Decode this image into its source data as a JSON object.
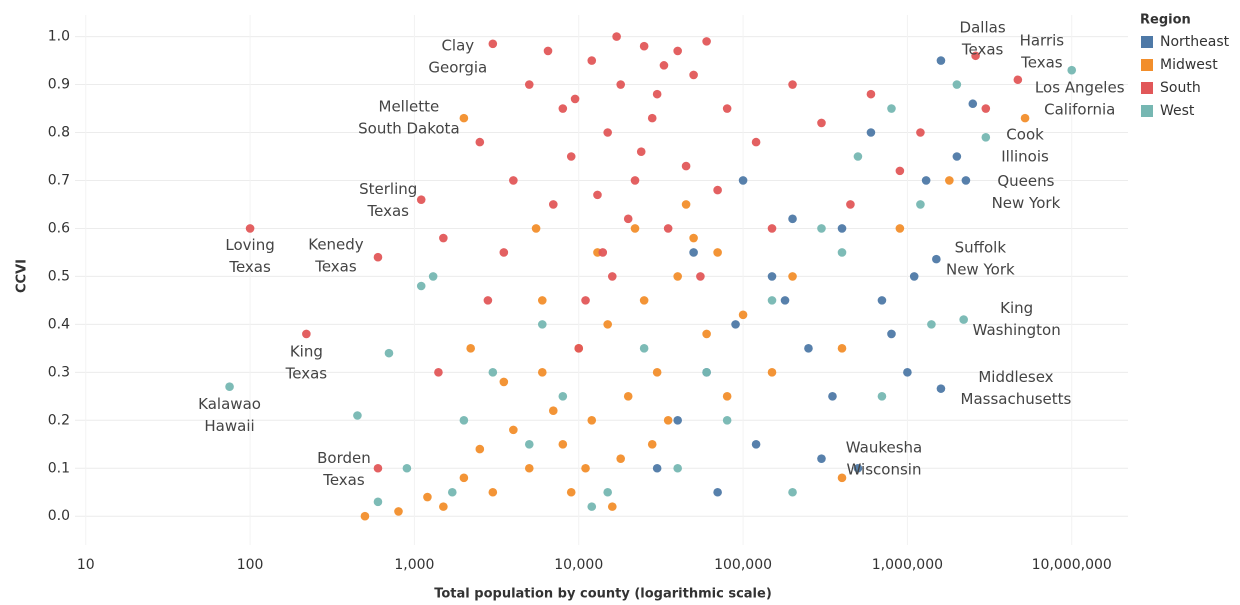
{
  "chart_data": {
    "type": "scatter",
    "x_label": "Total population by county (logarithmic scale)",
    "y_label": "CCVI",
    "x_log": true,
    "grid": true,
    "legend_title": "Region",
    "legend_position": "top-right",
    "xlim": [
      8.6,
      22000000
    ],
    "ylim": [
      -0.06,
      1.045
    ],
    "xticks": [
      10,
      100,
      {
        "value": 1000,
        "label": "1,000"
      },
      {
        "value": 10000,
        "label": "10,000"
      },
      {
        "value": 100000,
        "label": "100,000"
      },
      {
        "value": 1000000,
        "label": "1,000,000"
      },
      {
        "value": 10000000,
        "label": "10,000,000"
      }
    ],
    "yticks": [
      {
        "value": 0,
        "label": "0.0"
      },
      0.1,
      0.2,
      0.3,
      0.4,
      0.5,
      0.6,
      0.7,
      0.8,
      0.9,
      {
        "value": 1,
        "label": "1.0"
      }
    ],
    "series": [
      {
        "name": "Northeast",
        "color": "#4e79a7",
        "x": [
          40000,
          60000,
          90000,
          150000,
          250000,
          400000,
          700000,
          1000000,
          1300000,
          2000000,
          30000,
          50000,
          120000,
          200000,
          350000,
          600000,
          800000,
          500000,
          100000,
          70000,
          180000,
          1100000,
          2500000,
          1600000,
          300000,
          2270000,
          1500000,
          1600000
        ],
        "values": [
          0.2,
          0.3,
          0.4,
          0.5,
          0.35,
          0.6,
          0.45,
          0.3,
          0.7,
          0.75,
          0.1,
          0.55,
          0.15,
          0.62,
          0.25,
          0.8,
          0.38,
          0.1,
          0.7,
          0.05,
          0.45,
          0.5,
          0.86,
          0.95,
          0.12,
          0.7,
          0.536,
          0.266
        ]
      },
      {
        "name": "Midwest",
        "color": "#f28e2b",
        "x": [
          800,
          1500,
          3000,
          5000,
          8000,
          12000,
          20000,
          2000,
          4000,
          6000,
          10000,
          15000,
          25000,
          40000,
          9000,
          18000,
          30000,
          60000,
          100000,
          200000,
          3500,
          7000,
          13000,
          22000,
          50000,
          500,
          1200,
          2500,
          11000,
          35000,
          80000,
          150000,
          400000,
          900000,
          1800000,
          6000,
          16000,
          28000,
          5500,
          45000,
          70000,
          2200,
          2000,
          5200000,
          400000
        ],
        "values": [
          0.01,
          0.02,
          0.05,
          0.1,
          0.15,
          0.2,
          0.25,
          0.08,
          0.18,
          0.3,
          0.35,
          0.4,
          0.45,
          0.5,
          0.05,
          0.12,
          0.3,
          0.38,
          0.42,
          0.5,
          0.28,
          0.22,
          0.55,
          0.6,
          0.58,
          0.0,
          0.04,
          0.14,
          0.1,
          0.2,
          0.25,
          0.3,
          0.35,
          0.6,
          0.7,
          0.45,
          0.02,
          0.15,
          0.6,
          0.65,
          0.55,
          0.35,
          0.83,
          0.83,
          0.08
        ]
      },
      {
        "name": "South",
        "color": "#e15759",
        "x": [
          12000,
          25000,
          18000,
          40000,
          8000,
          60000,
          30000,
          15000,
          9000,
          22000,
          50000,
          7000,
          35000,
          14000,
          80000,
          120000,
          200000,
          5000,
          4000,
          3500,
          11000,
          20000,
          45000,
          28000,
          6500,
          17000,
          70000,
          150000,
          300000,
          600000,
          900000,
          10000,
          1500,
          2500,
          16000,
          33000,
          9500,
          55000,
          13000,
          24000,
          1400,
          2800,
          450000,
          1200000,
          3000000,
          2600000,
          4700000,
          3000,
          1100,
          100,
          600,
          220,
          600
        ],
        "values": [
          0.95,
          0.98,
          0.9,
          0.97,
          0.85,
          0.99,
          0.88,
          0.8,
          0.75,
          0.7,
          0.92,
          0.65,
          0.6,
          0.55,
          0.85,
          0.78,
          0.9,
          0.9,
          0.7,
          0.55,
          0.45,
          0.62,
          0.73,
          0.83,
          0.97,
          1.0,
          0.68,
          0.6,
          0.82,
          0.88,
          0.72,
          0.35,
          0.58,
          0.78,
          0.5,
          0.94,
          0.87,
          0.5,
          0.67,
          0.76,
          0.3,
          0.45,
          0.65,
          0.8,
          0.85,
          0.96,
          0.91,
          0.985,
          0.66,
          0.6,
          0.54,
          0.38,
          0.1
        ]
      },
      {
        "name": "West",
        "color": "#76b7b2",
        "x": [
          600,
          900,
          1100,
          700,
          1300,
          2000,
          3000,
          5000,
          8000,
          15000,
          25000,
          40000,
          80000,
          150000,
          300000,
          500000,
          800000,
          1200000,
          2000000,
          3000000,
          450,
          1700,
          6000,
          12000,
          60000,
          200000,
          400000,
          700000,
          1400000,
          10000000,
          2200000,
          75
        ],
        "values": [
          0.03,
          0.1,
          0.48,
          0.34,
          0.5,
          0.2,
          0.3,
          0.15,
          0.25,
          0.05,
          0.35,
          0.1,
          0.2,
          0.45,
          0.6,
          0.75,
          0.85,
          0.65,
          0.9,
          0.79,
          0.21,
          0.05,
          0.4,
          0.02,
          0.3,
          0.05,
          0.55,
          0.25,
          0.4,
          0.93,
          0.41,
          0.27
        ]
      }
    ],
    "annotations": [
      {
        "lines": [
          "Dallas",
          "Texas"
        ],
        "x": 2600000,
        "y": 0.96
      },
      {
        "lines": [
          "Harris",
          "Texas"
        ],
        "x": 4700000,
        "y": 0.91
      },
      {
        "lines": [
          "Los Angeles",
          "California"
        ],
        "x": 10000000,
        "y": 0.93
      },
      {
        "lines": [
          "Cook",
          "Illinois"
        ],
        "x": 5200000,
        "y": 0.83
      },
      {
        "lines": [
          "Queens",
          "New York"
        ],
        "x": 2270000,
        "y": 0.7
      },
      {
        "lines": [
          "Suffolk",
          "New York"
        ],
        "x": 1500000,
        "y": 0.536
      },
      {
        "lines": [
          "King",
          "Washington"
        ],
        "x": 2200000,
        "y": 0.41
      },
      {
        "lines": [
          "Middlesex",
          "Massachusetts"
        ],
        "x": 1600000,
        "y": 0.266
      },
      {
        "lines": [
          "Waukesha",
          "Wisconsin"
        ],
        "x": 400000,
        "y": 0.08
      },
      {
        "lines": [
          "Clay",
          "Georgia"
        ],
        "x": 3000,
        "y": 0.985
      },
      {
        "lines": [
          "Mellette",
          "South Dakota"
        ],
        "x": 2000,
        "y": 0.83
      },
      {
        "lines": [
          "Sterling",
          "Texas"
        ],
        "x": 1100,
        "y": 0.66
      },
      {
        "lines": [
          "Loving",
          "Texas"
        ],
        "x": 100,
        "y": 0.6
      },
      {
        "lines": [
          "Kenedy",
          "Texas"
        ],
        "x": 600,
        "y": 0.54
      },
      {
        "lines": [
          "King",
          "Texas"
        ],
        "x": 220,
        "y": 0.38
      },
      {
        "lines": [
          "Kalawao",
          "Hawaii"
        ],
        "x": 75,
        "y": 0.27
      },
      {
        "lines": [
          "Borden",
          "Texas"
        ],
        "x": 600,
        "y": 0.1
      }
    ]
  }
}
